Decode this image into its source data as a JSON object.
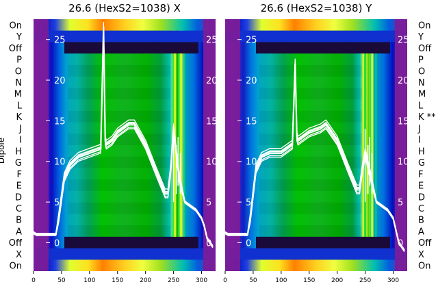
{
  "ylabel": "Dipole",
  "row_labels_left": [
    "On",
    "Y",
    "Off",
    "P",
    "O",
    "N",
    "M",
    "L",
    "K",
    "J",
    "I",
    "H",
    "G",
    "F",
    "E",
    "D",
    "C",
    "B",
    "A",
    "Off",
    "X",
    "On"
  ],
  "row_labels_right": [
    "On",
    "Y",
    "Off",
    "P",
    "O",
    "N",
    "M",
    "L",
    "K **",
    "J",
    "I",
    "H",
    "G",
    "F",
    "E",
    "D",
    "C",
    "B",
    "A",
    "Off",
    "X",
    "On"
  ],
  "colors": {
    "overlay": "#ffffff",
    "edge_band": "#7a1e9a",
    "dark_band": "#1a0a3a",
    "blue_band": "#1030d0"
  },
  "chart_data": [
    {
      "type": "heatmap",
      "title": "26.6 (HexS2=1038) X",
      "x_ticks": [
        0,
        50,
        100,
        150,
        200,
        250,
        300
      ],
      "xlim": [
        0,
        325
      ],
      "overlay_ticks": [
        0,
        5,
        10,
        15,
        20,
        25
      ],
      "overlay_ylim": [
        -3.5,
        27.5
      ],
      "colormap": "nipy_spectral",
      "trace_keypoints_x": [
        0,
        5,
        20,
        40,
        45,
        50,
        55,
        65,
        80,
        100,
        120,
        125,
        128,
        130,
        140,
        150,
        170,
        180,
        200,
        220,
        235,
        240,
        245,
        250,
        260,
        270,
        290,
        300,
        305,
        310,
        320
      ],
      "trace_keypoints_y": [
        1.2,
        1.0,
        1.0,
        1.0,
        3.0,
        5.5,
        8.0,
        9.5,
        10.5,
        11.0,
        11.5,
        26.5,
        12.5,
        12.0,
        12.5,
        13.5,
        14.5,
        14.5,
        12.0,
        8.5,
        6.0,
        6.0,
        9.0,
        14.0,
        8.0,
        5.0,
        4.0,
        3.0,
        2.0,
        0.5,
        -0.5
      ]
    },
    {
      "type": "heatmap",
      "title": "26.6 (HexS2=1038) Y",
      "x_ticks": [
        0,
        50,
        100,
        150,
        200,
        250,
        300
      ],
      "xlim": [
        0,
        325
      ],
      "overlay_ticks": [
        0,
        5,
        10,
        15,
        20,
        25
      ],
      "overlay_ylim": [
        -3.5,
        27.5
      ],
      "colormap": "nipy_spectral",
      "trace_keypoints_x": [
        0,
        5,
        20,
        40,
        45,
        50,
        55,
        65,
        80,
        100,
        120,
        125,
        128,
        130,
        140,
        150,
        170,
        180,
        200,
        220,
        235,
        240,
        245,
        250,
        260,
        270,
        290,
        300,
        305,
        310,
        320
      ],
      "trace_keypoints_y": [
        1.2,
        1.0,
        1.0,
        1.0,
        3.0,
        6.0,
        9.0,
        10.5,
        11.0,
        11.0,
        12.0,
        22.0,
        13.0,
        12.5,
        13.0,
        13.5,
        14.0,
        14.5,
        12.5,
        9.0,
        6.5,
        6.5,
        9.0,
        11.0,
        8.0,
        5.0,
        4.0,
        3.0,
        1.5,
        0.0,
        -1.0
      ]
    }
  ]
}
